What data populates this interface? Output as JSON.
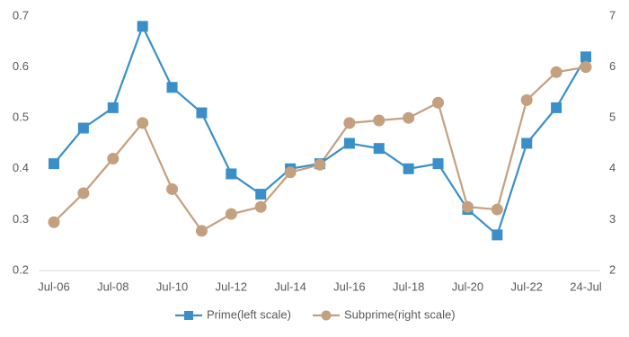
{
  "chart_data": {
    "type": "line",
    "categories": [
      "Jul-06",
      null,
      "Jul-08",
      null,
      "Jul-10",
      null,
      "Jul-12",
      null,
      "Jul-14",
      null,
      "Jul-16",
      null,
      "Jul-18",
      null,
      "Jul-20",
      null,
      "Jul-22",
      null,
      "24-Jul"
    ],
    "series": [
      {
        "name": "Prime(left scale)",
        "color": "#3a8fc9",
        "marker": "square",
        "values": [
          0.41,
          0.48,
          0.52,
          0.68,
          0.56,
          0.51,
          0.39,
          0.35,
          0.4,
          0.41,
          0.45,
          0.44,
          0.4,
          0.41,
          0.32,
          0.27,
          0.45,
          0.52,
          0.62
        ]
      },
      {
        "name": "Subprime(right scale)",
        "color": "#c4a07f",
        "marker": "circle",
        "axis": "y2",
        "values": [
          2.95,
          3.52,
          4.2,
          4.9,
          3.6,
          2.78,
          3.11,
          3.25,
          3.93,
          4.08,
          4.9,
          4.95,
          5.0,
          5.3,
          3.25,
          3.2,
          5.35,
          5.9,
          6.0
        ]
      }
    ],
    "ylim": [
      0.2,
      0.7
    ],
    "yticks": [
      0.2,
      0.3,
      0.4,
      0.5,
      0.6,
      0.7
    ],
    "y2lim": [
      2,
      7
    ],
    "y2ticks": [
      2,
      3,
      4,
      5,
      6,
      7
    ],
    "grid": false,
    "legend": "bottom"
  }
}
